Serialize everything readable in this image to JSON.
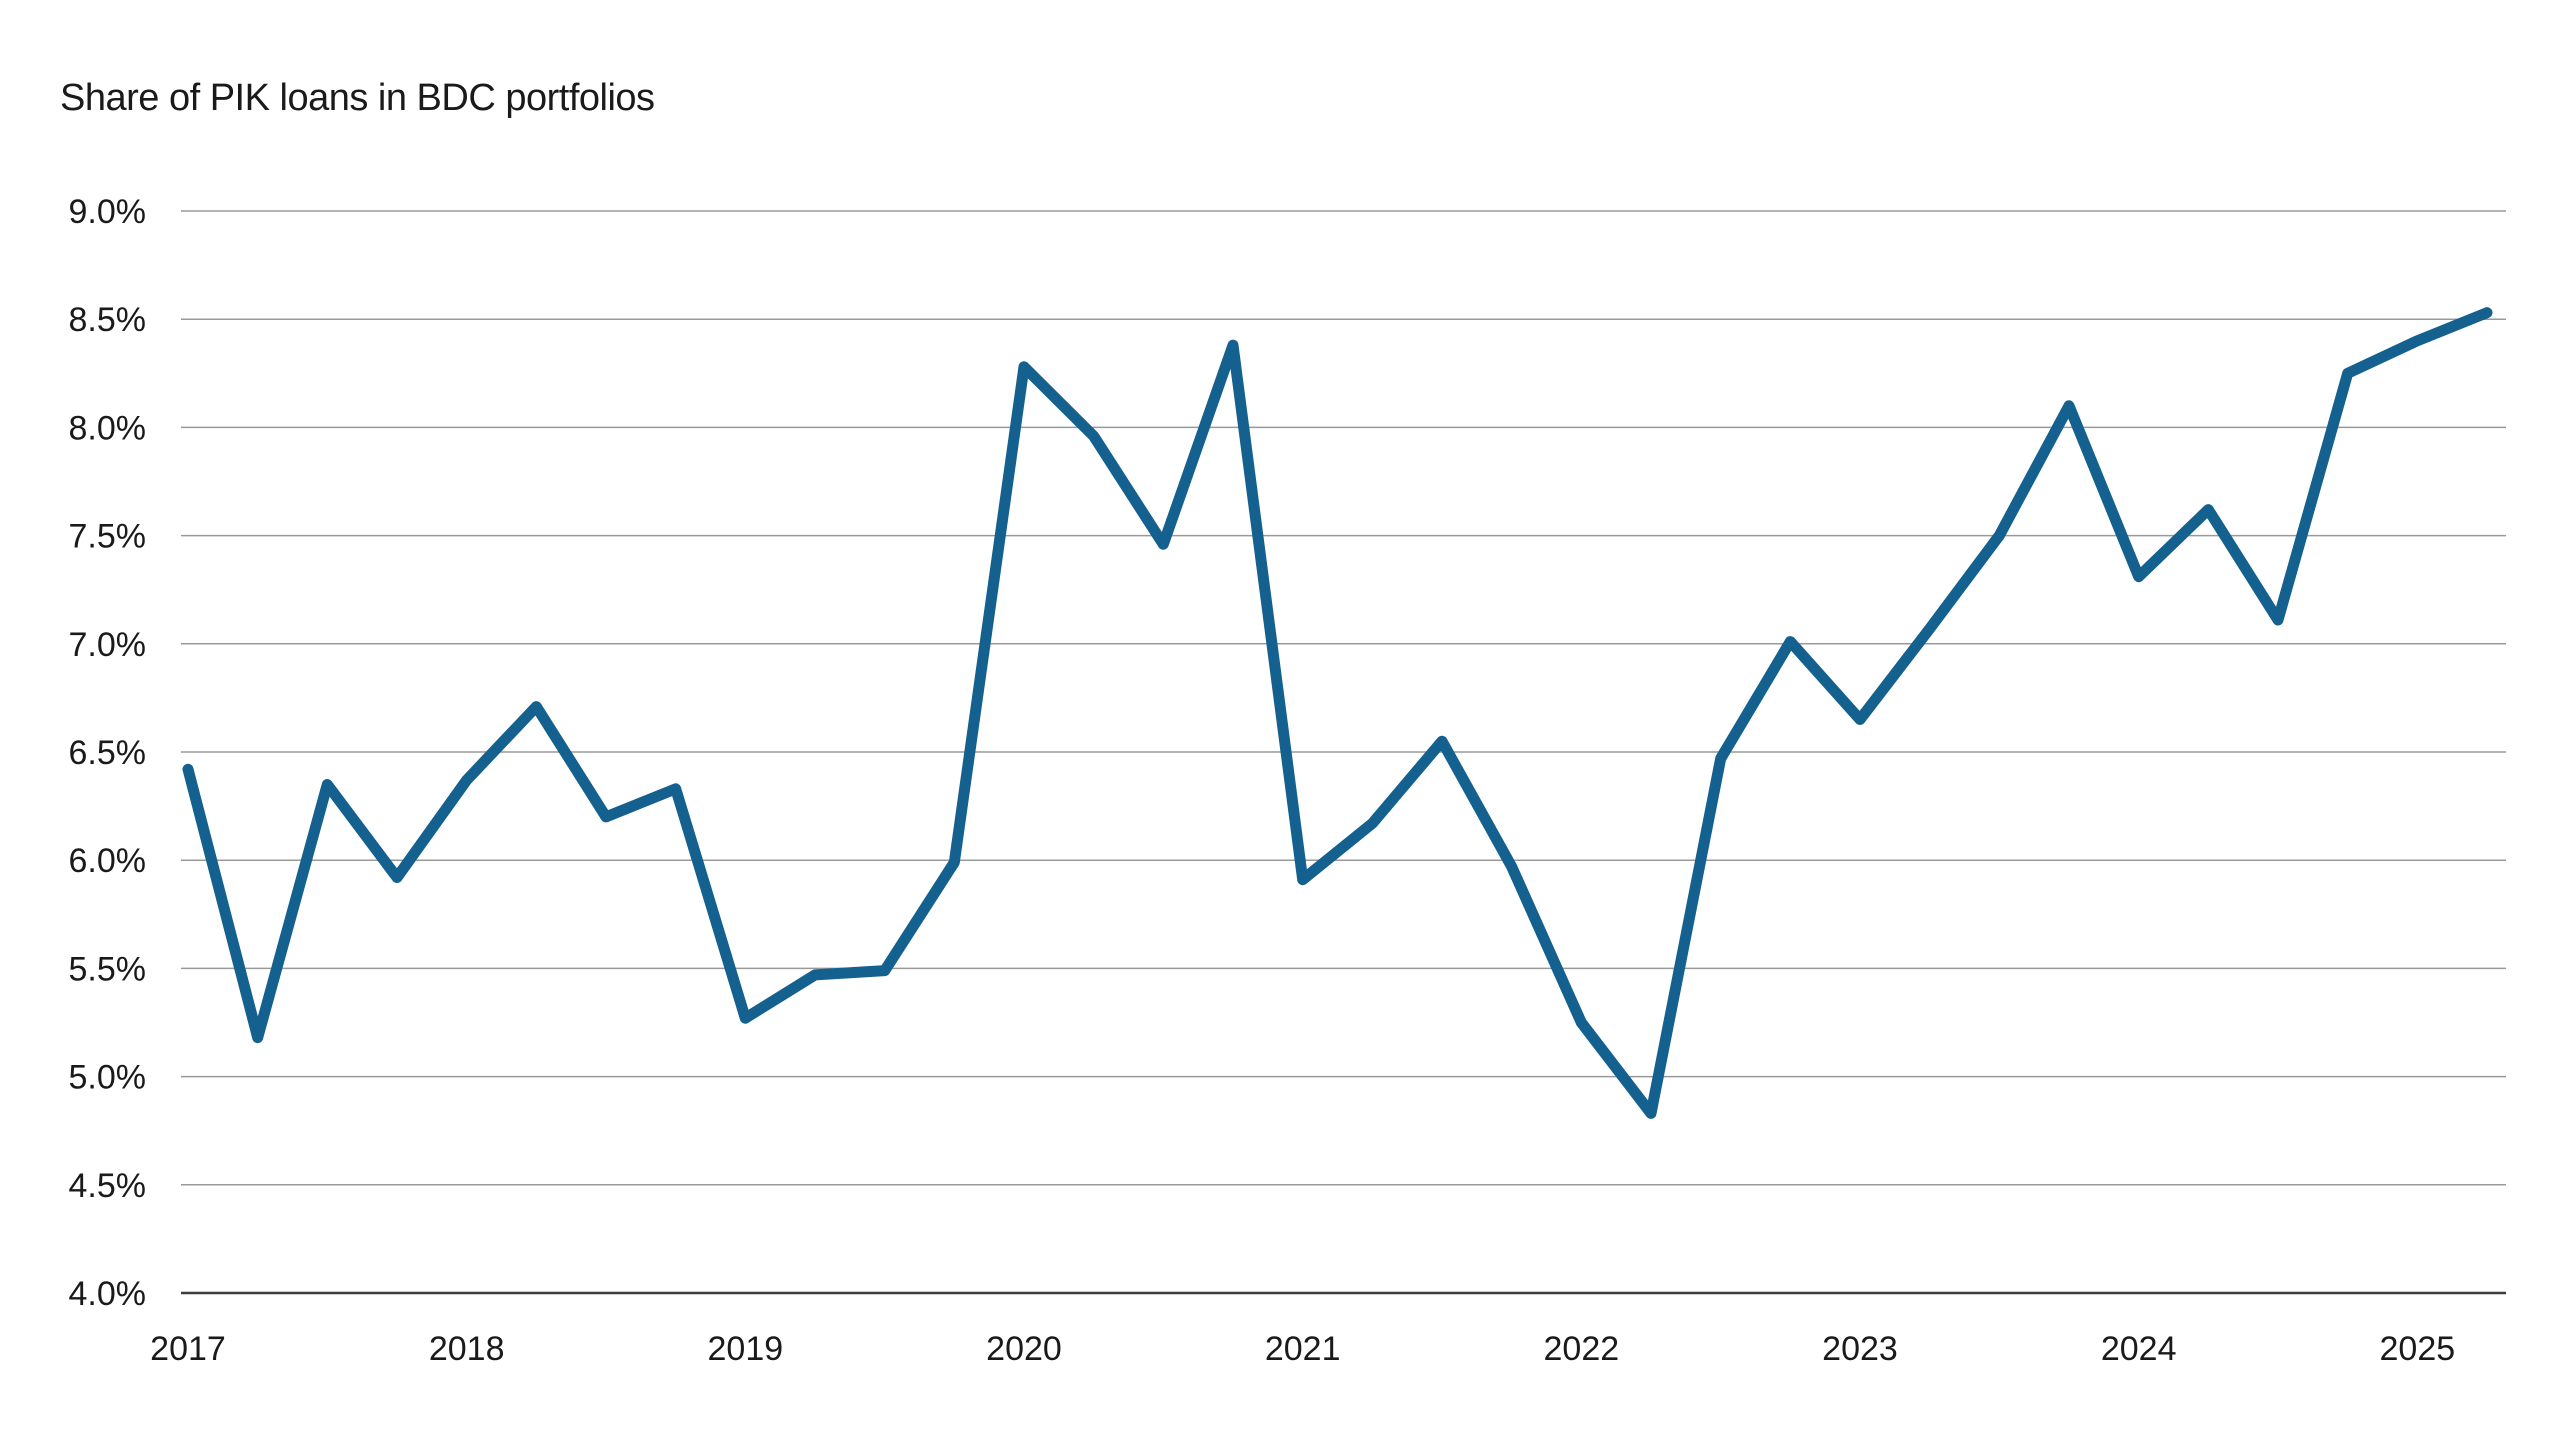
{
  "chart_data": {
    "type": "line",
    "title": "Share of PIK loans in BDC portfolios",
    "x_quarters": [
      "2017 Q1",
      "2017 Q2",
      "2017 Q3",
      "2017 Q4",
      "2018 Q1",
      "2018 Q2",
      "2018 Q3",
      "2018 Q4",
      "2019 Q1",
      "2019 Q2",
      "2019 Q3",
      "2019 Q4",
      "2020 Q1",
      "2020 Q2",
      "2020 Q3",
      "2020 Q4",
      "2021 Q1",
      "2021 Q2",
      "2021 Q3",
      "2021 Q4",
      "2022 Q1",
      "2022 Q2",
      "2022 Q3",
      "2022 Q4",
      "2023 Q1",
      "2023 Q2",
      "2023 Q3",
      "2023 Q4",
      "2024 Q1",
      "2024 Q2",
      "2024 Q3",
      "2024 Q4",
      "2025 Q1",
      "2025 Q2"
    ],
    "values": [
      6.42,
      5.18,
      6.35,
      5.92,
      6.37,
      6.71,
      6.2,
      6.33,
      5.27,
      5.47,
      5.49,
      5.99,
      8.28,
      7.96,
      7.46,
      8.38,
      5.91,
      6.17,
      6.55,
      5.97,
      5.25,
      4.83,
      6.47,
      7.01,
      6.65,
      7.07,
      7.5,
      8.1,
      7.31,
      7.62,
      7.11,
      8.25,
      8.4,
      8.53
    ],
    "ylim": [
      4.0,
      9.0
    ],
    "y_ticks": [
      4.0,
      4.5,
      5.0,
      5.5,
      6.0,
      6.5,
      7.0,
      7.5,
      8.0,
      8.5,
      9.0
    ],
    "y_tick_labels": [
      "4.0%",
      "4.5%",
      "5.0%",
      "5.5%",
      "6.0%",
      "6.5%",
      "7.0%",
      "7.5%",
      "8.0%",
      "8.5%",
      "9.0%"
    ],
    "x_tick_labels": [
      "2017",
      "2018",
      "2019",
      "2020",
      "2021",
      "2022",
      "2023",
      "2024",
      "2025"
    ],
    "grid": "horizontal-only",
    "legend": "none",
    "colors": {
      "line": "#14608E",
      "grid": "#999999",
      "axis": "#3d3d3d",
      "text": "#1a1a1a",
      "background": "#ffffff"
    }
  }
}
